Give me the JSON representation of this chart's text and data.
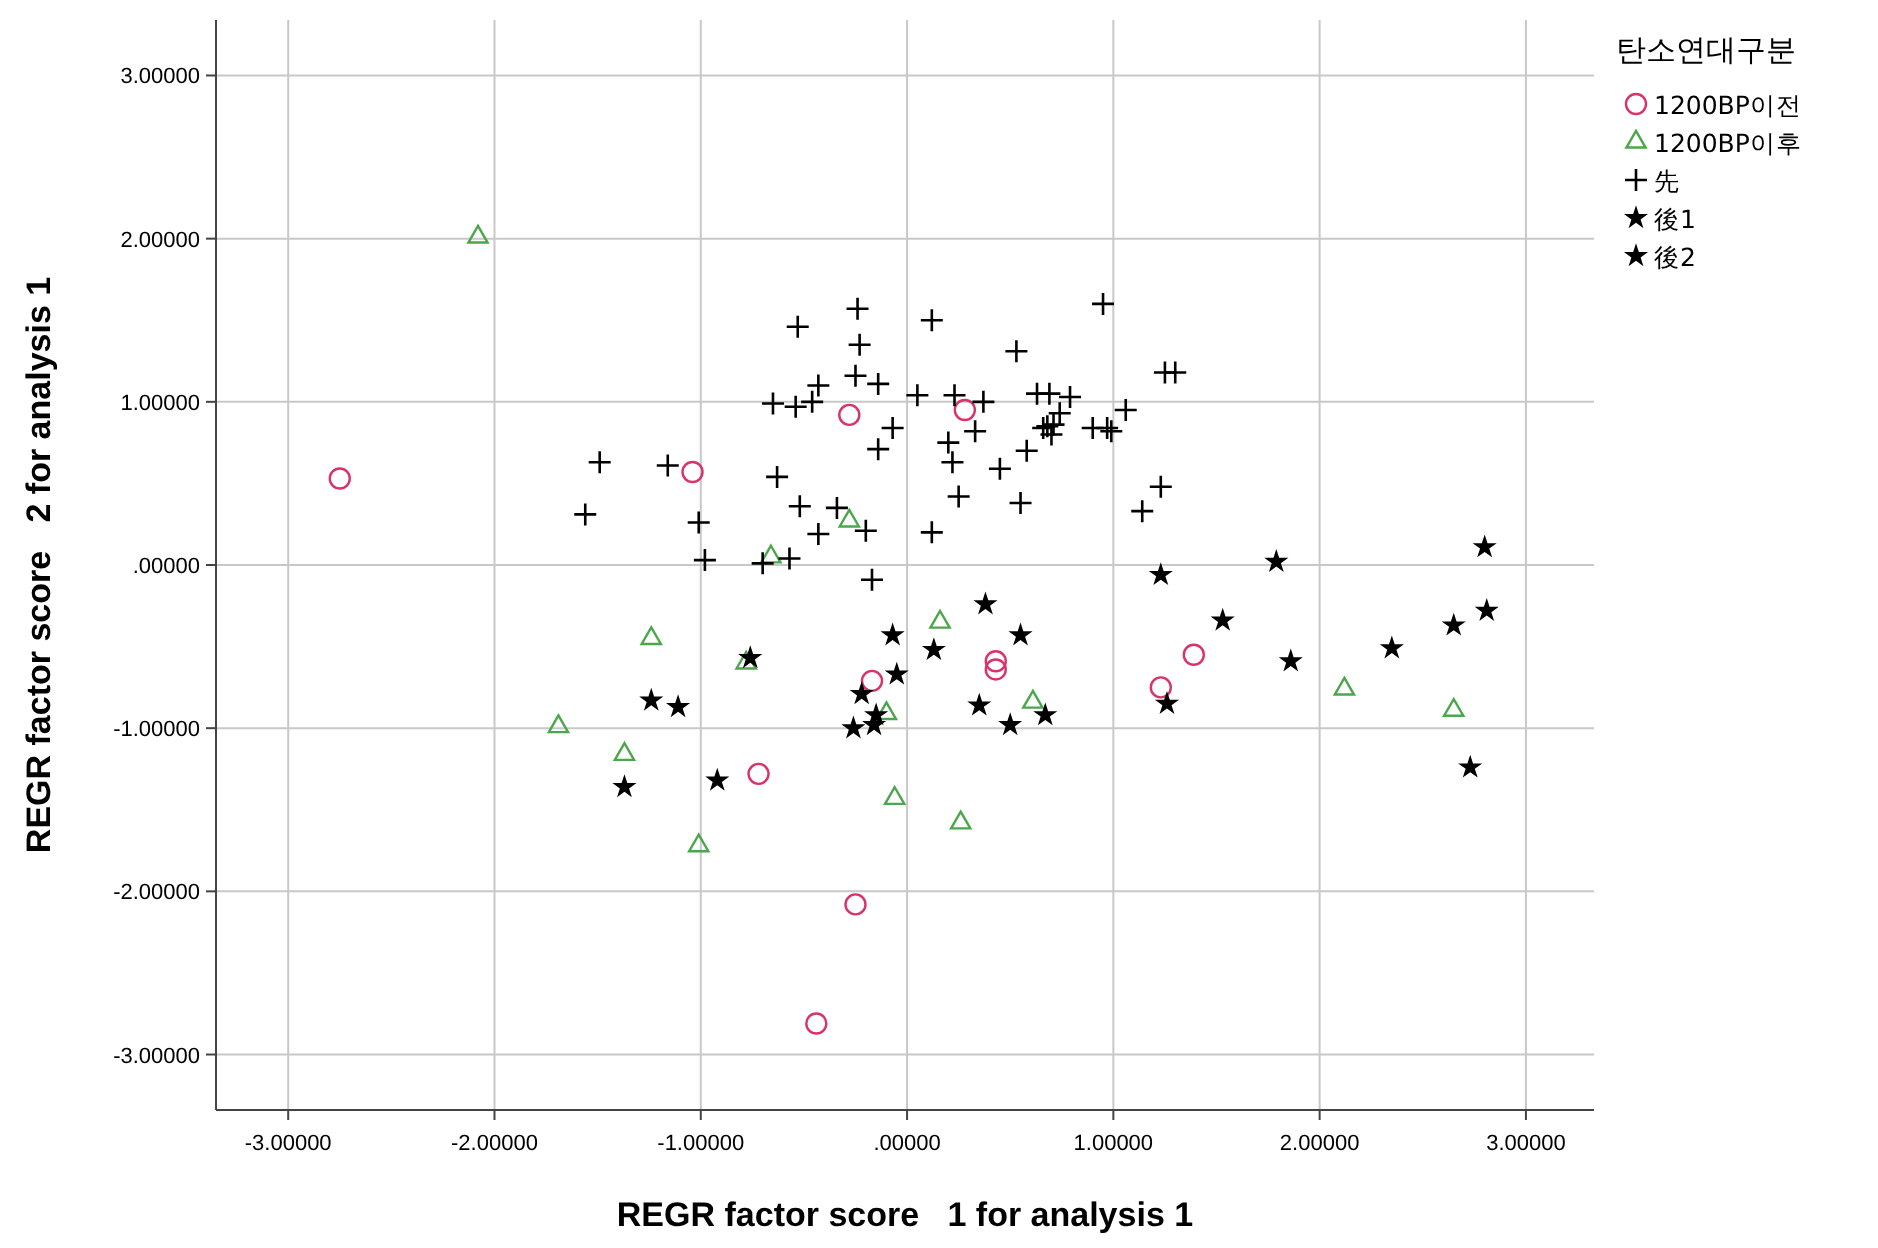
{
  "chart_data": {
    "type": "scatter",
    "xlabel": "REGR factor score   1 for analysis 1",
    "ylabel": "REGR factor score   2 for analysis 1",
    "legend_title": "탄소연대구분",
    "legend": "right",
    "grid": true,
    "xlim": [
      -3.35,
      3.33
    ],
    "ylim": [
      -3.34,
      3.34
    ],
    "xticks": [
      {
        "value": -3,
        "label": "-3.00000"
      },
      {
        "value": -2,
        "label": "-2.00000"
      },
      {
        "value": -1,
        "label": "-1.00000"
      },
      {
        "value": 0,
        "label": ".00000"
      },
      {
        "value": 1,
        "label": "1.00000"
      },
      {
        "value": 2,
        "label": "2.00000"
      },
      {
        "value": 3,
        "label": "3.00000"
      }
    ],
    "yticks": [
      {
        "value": -3,
        "label": "-3.00000"
      },
      {
        "value": -2,
        "label": "-2.00000"
      },
      {
        "value": -1,
        "label": "-1.00000"
      },
      {
        "value": 0,
        "label": ".00000"
      },
      {
        "value": 1,
        "label": "1.00000"
      },
      {
        "value": 2,
        "label": "2.00000"
      },
      {
        "value": 3,
        "label": "3.00000"
      }
    ],
    "series": [
      {
        "name": "1200BP이전",
        "color": "#d8336a",
        "marker": "circle",
        "x": [
          -2.75,
          -1.04,
          -0.28,
          0.28,
          -0.17,
          0.43,
          0.43,
          1.39,
          1.23,
          -0.72,
          -0.25,
          -0.44
        ],
        "values": [
          0.53,
          0.57,
          0.92,
          0.95,
          -0.71,
          -0.59,
          -0.64,
          -0.55,
          -0.75,
          -1.28,
          -2.08,
          -2.81
        ]
      },
      {
        "name": "1200BP이후",
        "color": "#4ca64c",
        "marker": "triangle",
        "x": [
          -2.08,
          -0.28,
          -0.66,
          -1.24,
          -1.69,
          -1.37,
          -0.78,
          -1.01,
          -0.1,
          -0.06,
          0.16,
          0.61,
          0.26,
          2.12,
          2.65
        ],
        "values": [
          2.01,
          0.27,
          0.05,
          -0.45,
          -0.99,
          -1.16,
          -0.6,
          -1.72,
          -0.91,
          -1.43,
          -0.35,
          -0.84,
          -1.58,
          -0.76,
          -0.89
        ]
      },
      {
        "name": "先",
        "color": "#000000",
        "marker": "cross",
        "x": [
          -0.53,
          -0.24,
          -0.23,
          -0.25,
          -0.14,
          -0.43,
          -0.65,
          -0.54,
          -0.46,
          -0.07,
          -0.14,
          -1.49,
          -1.16,
          -0.63,
          -1.56,
          -1.01,
          -0.52,
          -0.34,
          -0.43,
          -0.2,
          -0.98,
          -0.7,
          -0.57,
          -0.17,
          0.05,
          0.12,
          0.95,
          0.53,
          0.23,
          0.37,
          0.33,
          0.2,
          0.22,
          0.58,
          0.45,
          0.25,
          0.55,
          0.12,
          0.63,
          0.69,
          0.79,
          0.74,
          0.68,
          0.71,
          0.66,
          0.7,
          0.9,
          0.97,
          0.99,
          1.06,
          1.25,
          1.3,
          1.23,
          1.14
        ],
        "values": [
          1.46,
          1.57,
          1.35,
          1.16,
          1.11,
          1.1,
          0.99,
          0.97,
          1.0,
          0.84,
          0.71,
          0.63,
          0.61,
          0.54,
          0.31,
          0.26,
          0.36,
          0.35,
          0.19,
          0.21,
          0.03,
          0.01,
          0.04,
          -0.09,
          1.04,
          1.5,
          1.6,
          1.31,
          1.04,
          1.0,
          0.82,
          0.75,
          0.63,
          0.7,
          0.59,
          0.42,
          0.38,
          0.2,
          1.05,
          1.05,
          1.03,
          0.93,
          0.85,
          0.86,
          0.84,
          0.8,
          0.84,
          0.84,
          0.82,
          0.95,
          1.18,
          1.18,
          0.48,
          0.33
        ]
      },
      {
        "name": "後1",
        "color": "#000000",
        "marker": "star",
        "x": [
          -0.76,
          -1.24,
          -1.11,
          -1.37,
          -0.92,
          -0.22,
          -0.05,
          -0.15,
          -0.16,
          -0.26
        ],
        "values": [
          -0.57,
          -0.83,
          -0.87,
          -1.36,
          -1.32,
          -0.79,
          -0.67,
          -0.92,
          -0.98,
          -1.0
        ]
      },
      {
        "name": "後2",
        "color": "#000000",
        "marker": "star",
        "x": [
          -0.07,
          0.38,
          0.13,
          0.55,
          0.35,
          0.5,
          0.67,
          1.23,
          1.79,
          1.53,
          1.86,
          1.26,
          2.35,
          2.65,
          2.81,
          2.8,
          2.73
        ],
        "values": [
          -0.43,
          -0.24,
          -0.52,
          -0.43,
          -0.86,
          -0.98,
          -0.92,
          -0.06,
          0.02,
          -0.34,
          -0.59,
          -0.85,
          -0.51,
          -0.37,
          -0.28,
          0.11,
          -1.24
        ]
      }
    ]
  }
}
